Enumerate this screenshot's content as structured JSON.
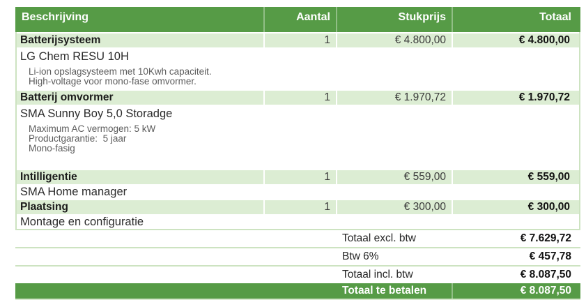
{
  "table": {
    "columns": {
      "description": "Beschrijving",
      "quantity": "Aantal",
      "unit_price": "Stukprijs",
      "total": "Totaal"
    }
  },
  "items": [
    {
      "title": "Batterijsysteem",
      "qty": "1",
      "unit_price": "€ 4.800,00",
      "total": "€ 4.800,00",
      "product": "LG Chem RESU 10H",
      "details": [
        "Li-ion opslagsysteem met 10Kwh capaciteit.",
        "High-voltage voor mono-fase omvormer."
      ]
    },
    {
      "title": "Batterij omvormer",
      "qty": "1",
      "unit_price": "€ 1.970,72",
      "total": "€ 1.970,72",
      "product": "SMA Sunny Boy 5,0 Storadge",
      "details": [
        "Maximum AC vermogen: 5 kW",
        "Productgarantie:  5 jaar",
        "Mono-fasig"
      ]
    },
    {
      "title": "Intilligentie",
      "qty": "1",
      "unit_price": "€ 559,00",
      "total": "€ 559,00",
      "product": "SMA Home manager",
      "details": []
    },
    {
      "title": "Plaatsing",
      "qty": "1",
      "unit_price": "€ 300,00",
      "total": "€ 300,00",
      "product": "Montage en configuratie",
      "details": []
    }
  ],
  "totals": [
    {
      "label": "Totaal excl. btw",
      "value": "€ 7.629,72"
    },
    {
      "label": "Btw 6%",
      "value": "€ 457,78"
    },
    {
      "label": "Totaal incl. btw",
      "value": "€ 8.087,50"
    },
    {
      "label": "Totaal te betalen",
      "value": "€ 8.087,50"
    }
  ],
  "colors": {
    "header_green": "#569b46",
    "row_light_green": "#dcedd3",
    "border_green": "#cde3c1"
  }
}
